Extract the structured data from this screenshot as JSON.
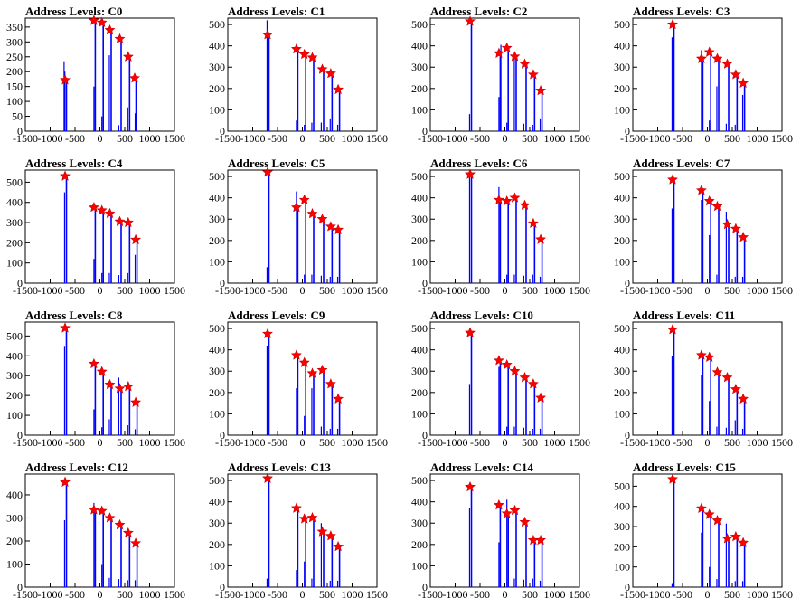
{
  "chart_data": [
    {
      "type": "bar",
      "title": "Address Levels: C0",
      "xlim": [
        -1500,
        1500
      ],
      "ylim": [
        0,
        380
      ],
      "yticks": [
        0,
        50,
        100,
        150,
        200,
        250,
        300,
        350
      ],
      "xticks": [
        -1500,
        -1000,
        -500,
        0,
        500,
        1000,
        1500
      ],
      "peaks": [
        [
          -700,
          172
        ],
        [
          -120,
          372
        ],
        [
          40,
          365
        ],
        [
          200,
          340
        ],
        [
          400,
          310
        ],
        [
          570,
          250
        ],
        [
          700,
          178
        ]
      ],
      "spikes": [
        [
          -720,
          235
        ],
        [
          -705,
          200
        ],
        [
          -120,
          150
        ],
        [
          40,
          50
        ],
        [
          190,
          255
        ],
        [
          380,
          20
        ],
        [
          560,
          80
        ],
        [
          710,
          60
        ]
      ]
    },
    {
      "type": "bar",
      "title": "Address Levels: C1",
      "xlim": [
        -1500,
        1500
      ],
      "ylim": [
        0,
        530
      ],
      "yticks": [
        0,
        100,
        200,
        300,
        400,
        500
      ],
      "xticks": [
        -1500,
        -1000,
        -500,
        0,
        500,
        1000,
        1500
      ],
      "peaks": [
        [
          -700,
          452
        ],
        [
          -120,
          385
        ],
        [
          40,
          360
        ],
        [
          200,
          345
        ],
        [
          400,
          290
        ],
        [
          570,
          270
        ],
        [
          720,
          195
        ]
      ],
      "spikes": [
        [
          -710,
          520
        ],
        [
          -700,
          290
        ],
        [
          -120,
          50
        ],
        [
          40,
          30
        ],
        [
          190,
          40
        ],
        [
          380,
          40
        ],
        [
          560,
          60
        ],
        [
          710,
          30
        ]
      ]
    },
    {
      "type": "bar",
      "title": "Address Levels: C2",
      "xlim": [
        -1500,
        1500
      ],
      "ylim": [
        0,
        530
      ],
      "yticks": [
        0,
        100,
        200,
        300,
        400,
        500
      ],
      "xticks": [
        -1500,
        -1000,
        -500,
        0,
        500,
        1000,
        1500
      ],
      "peaks": [
        [
          -700,
          515
        ],
        [
          -120,
          365
        ],
        [
          40,
          390
        ],
        [
          200,
          350
        ],
        [
          400,
          315
        ],
        [
          570,
          265
        ],
        [
          720,
          190
        ]
      ],
      "spikes": [
        [
          -710,
          80
        ],
        [
          -120,
          160
        ],
        [
          -80,
          405
        ],
        [
          40,
          40
        ],
        [
          190,
          355
        ],
        [
          380,
          35
        ],
        [
          560,
          30
        ],
        [
          710,
          60
        ]
      ]
    },
    {
      "type": "bar",
      "title": "Address Levels: C3",
      "xlim": [
        -1500,
        1500
      ],
      "ylim": [
        0,
        530
      ],
      "yticks": [
        0,
        100,
        200,
        300,
        400,
        500
      ],
      "xticks": [
        -1500,
        -1000,
        -500,
        0,
        500,
        1000,
        1500
      ],
      "peaks": [
        [
          -700,
          500
        ],
        [
          -120,
          340
        ],
        [
          40,
          370
        ],
        [
          200,
          340
        ],
        [
          400,
          315
        ],
        [
          570,
          265
        ],
        [
          720,
          225
        ]
      ],
      "spikes": [
        [
          -710,
          440
        ],
        [
          -120,
          380
        ],
        [
          40,
          50
        ],
        [
          190,
          210
        ],
        [
          380,
          35
        ],
        [
          560,
          30
        ],
        [
          710,
          170
        ]
      ]
    },
    {
      "type": "bar",
      "title": "Address Levels: C4",
      "xlim": [
        -1500,
        1500
      ],
      "ylim": [
        0,
        560
      ],
      "yticks": [
        0,
        100,
        200,
        300,
        400,
        500
      ],
      "xticks": [
        -1500,
        -1000,
        -500,
        0,
        500,
        1000,
        1500
      ],
      "peaks": [
        [
          -700,
          530
        ],
        [
          -120,
          375
        ],
        [
          40,
          360
        ],
        [
          200,
          345
        ],
        [
          400,
          305
        ],
        [
          570,
          300
        ],
        [
          720,
          215
        ]
      ],
      "spikes": [
        [
          -710,
          450
        ],
        [
          -120,
          120
        ],
        [
          40,
          50
        ],
        [
          190,
          50
        ],
        [
          380,
          40
        ],
        [
          560,
          50
        ],
        [
          710,
          140
        ]
      ]
    },
    {
      "type": "bar",
      "title": "Address Levels: C5",
      "xlim": [
        -1500,
        1500
      ],
      "ylim": [
        0,
        530
      ],
      "yticks": [
        0,
        100,
        200,
        300,
        400,
        500
      ],
      "xticks": [
        -1500,
        -1000,
        -500,
        0,
        500,
        1000,
        1500
      ],
      "peaks": [
        [
          -700,
          520
        ],
        [
          -120,
          355
        ],
        [
          40,
          390
        ],
        [
          200,
          325
        ],
        [
          400,
          300
        ],
        [
          570,
          265
        ],
        [
          720,
          250
        ]
      ],
      "spikes": [
        [
          -710,
          75
        ],
        [
          -120,
          430
        ],
        [
          40,
          40
        ],
        [
          190,
          40
        ],
        [
          380,
          35
        ],
        [
          560,
          30
        ],
        [
          710,
          30
        ]
      ]
    },
    {
      "type": "bar",
      "title": "Address Levels: C6",
      "xlim": [
        -1500,
        1500
      ],
      "ylim": [
        0,
        530
      ],
      "yticks": [
        0,
        100,
        200,
        300,
        400,
        500
      ],
      "xticks": [
        -1500,
        -1000,
        -500,
        0,
        500,
        1000,
        1500
      ],
      "peaks": [
        [
          -700,
          510
        ],
        [
          -120,
          390
        ],
        [
          40,
          385
        ],
        [
          200,
          400
        ],
        [
          400,
          365
        ],
        [
          570,
          280
        ],
        [
          720,
          205
        ]
      ],
      "spikes": [
        [
          -710,
          500
        ],
        [
          -120,
          450
        ],
        [
          40,
          40
        ],
        [
          190,
          40
        ],
        [
          380,
          35
        ],
        [
          560,
          40
        ],
        [
          710,
          30
        ]
      ]
    },
    {
      "type": "bar",
      "title": "Address Levels: C7",
      "xlim": [
        -1500,
        1500
      ],
      "ylim": [
        0,
        530
      ],
      "yticks": [
        0,
        100,
        200,
        300,
        400,
        500
      ],
      "xticks": [
        -1500,
        -1000,
        -500,
        0,
        500,
        1000,
        1500
      ],
      "peaks": [
        [
          -700,
          485
        ],
        [
          -120,
          435
        ],
        [
          40,
          385
        ],
        [
          200,
          360
        ],
        [
          400,
          275
        ],
        [
          570,
          255
        ],
        [
          720,
          215
        ]
      ],
      "spikes": [
        [
          -710,
          350
        ],
        [
          -120,
          390
        ],
        [
          40,
          225
        ],
        [
          190,
          40
        ],
        [
          380,
          335
        ],
        [
          560,
          30
        ],
        [
          710,
          30
        ]
      ]
    },
    {
      "type": "bar",
      "title": "Address Levels: C8",
      "xlim": [
        -1500,
        1500
      ],
      "ylim": [
        0,
        570
      ],
      "yticks": [
        0,
        100,
        200,
        300,
        400,
        500
      ],
      "xticks": [
        -1500,
        -1000,
        -500,
        0,
        500,
        1000,
        1500
      ],
      "peaks": [
        [
          -700,
          540
        ],
        [
          -120,
          360
        ],
        [
          40,
          320
        ],
        [
          200,
          255
        ],
        [
          400,
          235
        ],
        [
          570,
          245
        ],
        [
          720,
          165
        ]
      ],
      "spikes": [
        [
          -710,
          450
        ],
        [
          -120,
          130
        ],
        [
          40,
          40
        ],
        [
          190,
          80
        ],
        [
          380,
          290
        ],
        [
          560,
          50
        ],
        [
          710,
          30
        ]
      ]
    },
    {
      "type": "bar",
      "title": "Address Levels: C9",
      "xlim": [
        -1500,
        1500
      ],
      "ylim": [
        0,
        530
      ],
      "yticks": [
        0,
        100,
        200,
        300,
        400,
        500
      ],
      "xticks": [
        -1500,
        -1000,
        -500,
        0,
        500,
        1000,
        1500
      ],
      "peaks": [
        [
          -700,
          475
        ],
        [
          -120,
          375
        ],
        [
          40,
          340
        ],
        [
          200,
          290
        ],
        [
          400,
          305
        ],
        [
          570,
          240
        ],
        [
          720,
          170
        ]
      ],
      "spikes": [
        [
          -710,
          420
        ],
        [
          -120,
          220
        ],
        [
          40,
          90
        ],
        [
          190,
          220
        ],
        [
          380,
          40
        ],
        [
          560,
          30
        ],
        [
          710,
          30
        ]
      ]
    },
    {
      "type": "bar",
      "title": "Address Levels: C10",
      "xlim": [
        -1500,
        1500
      ],
      "ylim": [
        0,
        530
      ],
      "yticks": [
        0,
        100,
        200,
        300,
        400,
        500
      ],
      "xticks": [
        -1500,
        -1000,
        -500,
        0,
        500,
        1000,
        1500
      ],
      "peaks": [
        [
          -700,
          480
        ],
        [
          -120,
          350
        ],
        [
          40,
          330
        ],
        [
          200,
          300
        ],
        [
          400,
          270
        ],
        [
          570,
          240
        ],
        [
          720,
          175
        ]
      ],
      "spikes": [
        [
          -710,
          240
        ],
        [
          -120,
          320
        ],
        [
          40,
          40
        ],
        [
          190,
          40
        ],
        [
          380,
          35
        ],
        [
          560,
          30
        ],
        [
          710,
          30
        ]
      ]
    },
    {
      "type": "bar",
      "title": "Address Levels: C11",
      "xlim": [
        -1500,
        1500
      ],
      "ylim": [
        0,
        530
      ],
      "yticks": [
        0,
        100,
        200,
        300,
        400,
        500
      ],
      "xticks": [
        -1500,
        -1000,
        -500,
        0,
        500,
        1000,
        1500
      ],
      "peaks": [
        [
          -700,
          495
        ],
        [
          -120,
          375
        ],
        [
          40,
          365
        ],
        [
          200,
          295
        ],
        [
          400,
          270
        ],
        [
          570,
          215
        ],
        [
          720,
          170
        ]
      ],
      "spikes": [
        [
          -710,
          370
        ],
        [
          -120,
          280
        ],
        [
          40,
          160
        ],
        [
          190,
          40
        ],
        [
          380,
          35
        ],
        [
          560,
          70
        ],
        [
          710,
          30
        ]
      ]
    },
    {
      "type": "bar",
      "title": "Address Levels: C12",
      "xlim": [
        -1500,
        1500
      ],
      "ylim": [
        0,
        490
      ],
      "yticks": [
        0,
        100,
        200,
        300,
        400
      ],
      "xticks": [
        -1500,
        -1000,
        -500,
        0,
        500,
        1000,
        1500
      ],
      "peaks": [
        [
          -700,
          455
        ],
        [
          -120,
          335
        ],
        [
          40,
          330
        ],
        [
          200,
          300
        ],
        [
          400,
          270
        ],
        [
          570,
          235
        ],
        [
          720,
          190
        ]
      ],
      "spikes": [
        [
          -710,
          290
        ],
        [
          -120,
          365
        ],
        [
          40,
          100
        ],
        [
          190,
          40
        ],
        [
          380,
          35
        ],
        [
          560,
          30
        ],
        [
          710,
          30
        ]
      ]
    },
    {
      "type": "bar",
      "title": "Address Levels: C13",
      "xlim": [
        -1500,
        1500
      ],
      "ylim": [
        0,
        530
      ],
      "yticks": [
        0,
        100,
        200,
        300,
        400,
        500
      ],
      "xticks": [
        -1500,
        -1000,
        -500,
        0,
        500,
        1000,
        1500
      ],
      "peaks": [
        [
          -700,
          510
        ],
        [
          -120,
          370
        ],
        [
          40,
          320
        ],
        [
          200,
          325
        ],
        [
          400,
          260
        ],
        [
          570,
          240
        ],
        [
          720,
          190
        ]
      ],
      "spikes": [
        [
          -710,
          40
        ],
        [
          -120,
          80
        ],
        [
          40,
          120
        ],
        [
          190,
          40
        ],
        [
          380,
          300
        ],
        [
          560,
          30
        ],
        [
          710,
          30
        ]
      ]
    },
    {
      "type": "bar",
      "title": "Address Levels: C14",
      "xlim": [
        -1500,
        1500
      ],
      "ylim": [
        0,
        530
      ],
      "yticks": [
        0,
        100,
        200,
        300,
        400,
        500
      ],
      "xticks": [
        -1500,
        -1000,
        -500,
        0,
        500,
        1000,
        1500
      ],
      "peaks": [
        [
          -700,
          470
        ],
        [
          -120,
          385
        ],
        [
          40,
          345
        ],
        [
          200,
          360
        ],
        [
          400,
          305
        ],
        [
          570,
          220
        ],
        [
          720,
          220
        ]
      ],
      "spikes": [
        [
          -710,
          370
        ],
        [
          -120,
          210
        ],
        [
          40,
          410
        ],
        [
          190,
          40
        ],
        [
          380,
          35
        ],
        [
          560,
          40
        ],
        [
          710,
          30
        ]
      ]
    },
    {
      "type": "bar",
      "title": "Address Levels: C15",
      "xlim": [
        -1500,
        1500
      ],
      "ylim": [
        0,
        560
      ],
      "yticks": [
        0,
        100,
        200,
        300,
        400,
        500
      ],
      "xticks": [
        -1500,
        -1000,
        -500,
        0,
        500,
        1000,
        1500
      ],
      "peaks": [
        [
          -700,
          535
        ],
        [
          -120,
          390
        ],
        [
          40,
          360
        ],
        [
          200,
          330
        ],
        [
          400,
          240
        ],
        [
          570,
          250
        ],
        [
          720,
          220
        ]
      ],
      "spikes": [
        [
          -710,
          20
        ],
        [
          -120,
          270
        ],
        [
          40,
          100
        ],
        [
          190,
          40
        ],
        [
          380,
          315
        ],
        [
          560,
          30
        ],
        [
          710,
          30
        ]
      ]
    }
  ],
  "colors": {
    "bar": "#0000ff",
    "marker": "#ff0000",
    "axis": "#000000"
  }
}
